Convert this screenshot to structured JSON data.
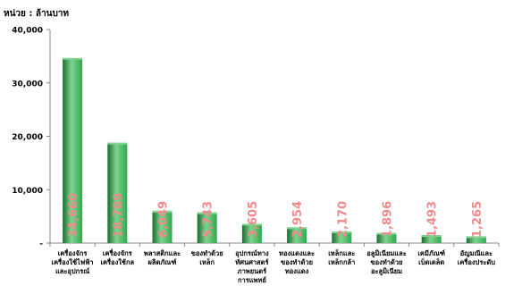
{
  "chart_data": {
    "type": "bar",
    "unit_label": "หน่วย : ล้านบาท",
    "title": "",
    "xlabel": "",
    "ylabel": "",
    "ylim": [
      0,
      40000
    ],
    "y_ticks": [
      "-",
      "10,000",
      "20,000",
      "30,000",
      "40,000"
    ],
    "grid": false,
    "categories": [
      [
        "เครื่องจักร",
        "เครื่องใช้ไฟฟ้า",
        "และอุปกรณ์"
      ],
      [
        "เครื่องจักร",
        "เครื่องใช้กล"
      ],
      [
        "พลาสติกและ",
        "ผลิตภัณฑ์"
      ],
      [
        "ของทำด้วย",
        "เหล็ก"
      ],
      [
        "อุปกรณ์ทาง",
        "ทัศนศาสตร์",
        "ภาพยนตร์",
        "การแพทย์"
      ],
      [
        "ทองแดงและ",
        "ของทำด้วย",
        "ทองแดง"
      ],
      [
        "เหล็กและ",
        "เหล็กกล้า"
      ],
      [
        "อลูมิเนียมและ",
        "ของทำด้วย",
        "อะลูมิเนียม"
      ],
      [
        "เคมีภัณฑ์",
        "เบ็ดเตล็ด"
      ],
      [
        "อัญมณีและ",
        "เครื่องประดับ"
      ]
    ],
    "values": [
      34660,
      18789,
      6049,
      5743,
      3605,
      2954,
      2170,
      1896,
      1493,
      1265
    ],
    "value_labels": [
      "34,660",
      "18,789",
      "6,049",
      "5,743",
      "3,605",
      "2,954",
      "2,170",
      "1,896",
      "1,493",
      "1,265"
    ],
    "colors": {
      "bar": "#2fa84f",
      "bar_dark": "#1a6e2e",
      "bar_light": "#7fd48f",
      "label": "#ee8c8c",
      "axis": "#888888"
    }
  }
}
